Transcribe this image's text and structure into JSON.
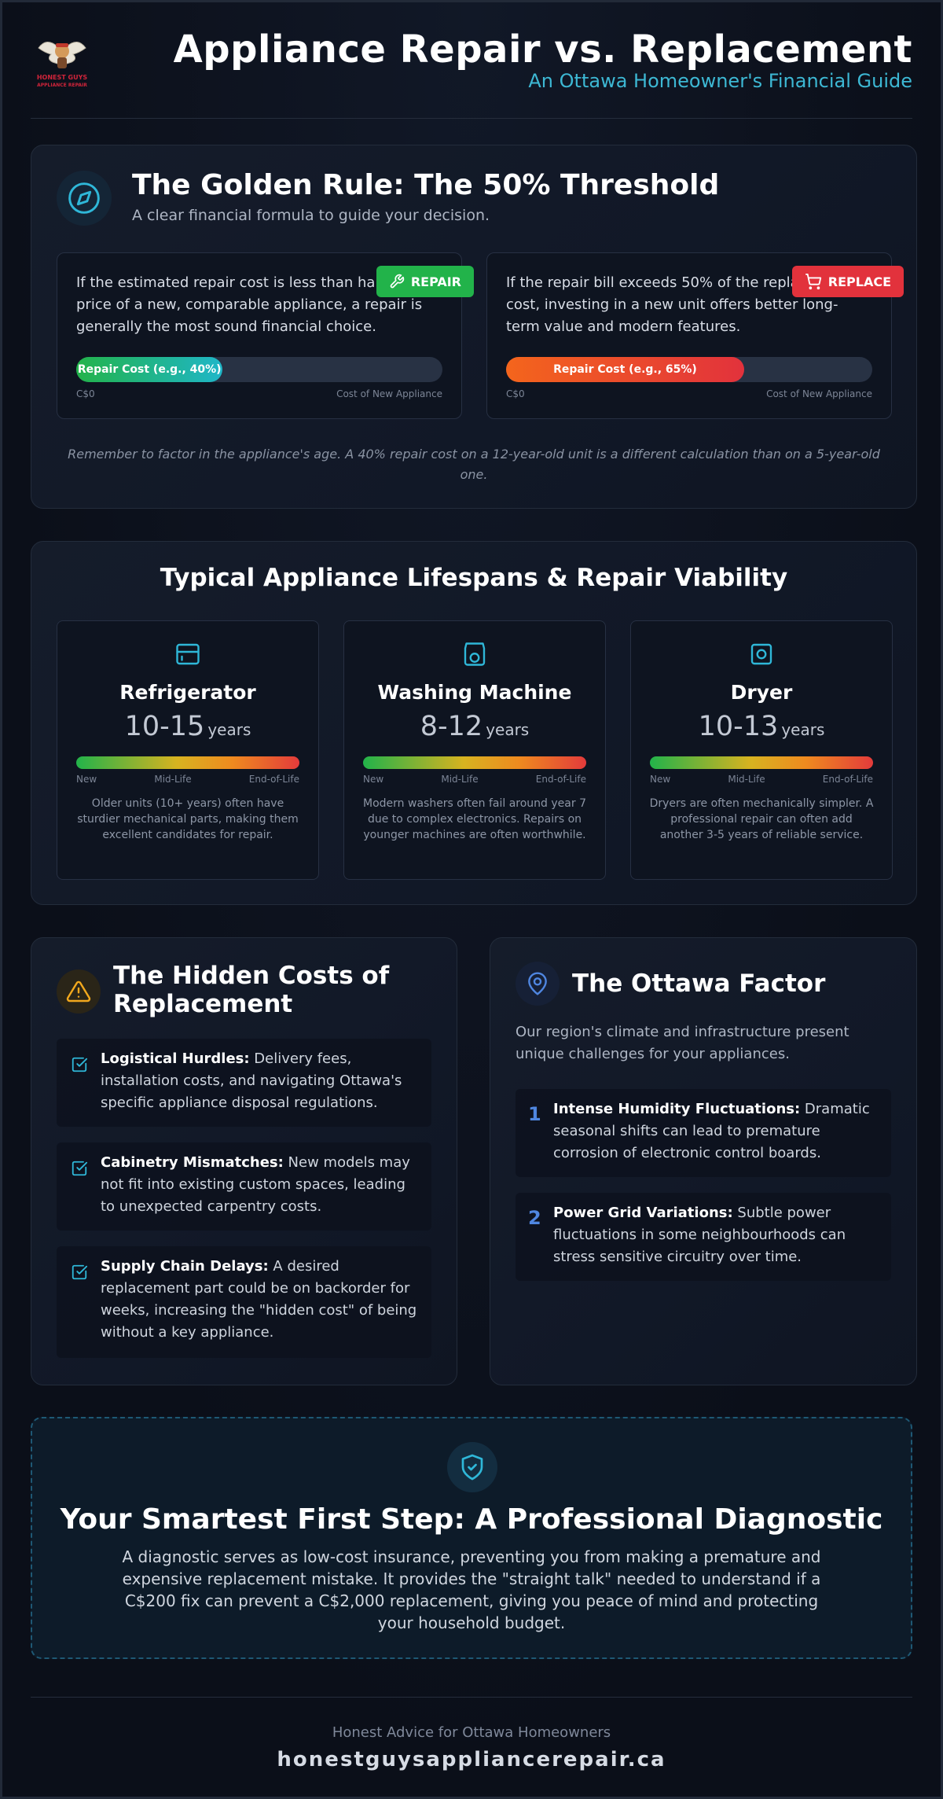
{
  "header": {
    "logo_text": "HONEST GUYS APPLIANCE REPAIR",
    "title": "Appliance Repair vs. Replacement",
    "subtitle": "An Ottawa Homeowner's Financial Guide"
  },
  "golden_rule": {
    "icon": "compass-icon",
    "title": "The Golden Rule: The 50% Threshold",
    "subtitle": "A clear financial formula to guide your decision.",
    "repair": {
      "badge": "REPAIR",
      "badge_icon": "wrench-icon",
      "text": "If the estimated repair cost is less than half the price of a new, comparable appliance, a repair is generally the most sound financial choice.",
      "bar_label": "Repair Cost (e.g., 40%)",
      "bar_value": 0.4,
      "scale_left": "C$0",
      "scale_right": "Cost of New Appliance",
      "color": "#22b34a"
    },
    "replace": {
      "badge": "REPLACE",
      "badge_icon": "cart-icon",
      "text": "If the repair bill exceeds 50% of the replacement cost, investing in a new unit offers better long-term value and modern features.",
      "bar_label": "Repair Cost (e.g., 65%)",
      "bar_value": 0.65,
      "scale_left": "C$0",
      "scale_right": "Cost of New Appliance",
      "color": "#e2323c"
    },
    "note": "Remember to factor in the appliance's age. A 40% repair cost on a 12-year-old unit is a different calculation than on a 5-year-old one."
  },
  "lifespans": {
    "title": "Typical Appliance Lifespans & Repair Viability",
    "scale": [
      "New",
      "Mid-Life",
      "End-of-Life"
    ],
    "items": [
      {
        "icon": "refrigerator-icon",
        "name": "Refrigerator",
        "years": "10-15",
        "unit": "years",
        "desc": "Older units (10+ years) often have sturdier mechanical parts, making them excellent candidates for repair."
      },
      {
        "icon": "washing-machine-icon",
        "name": "Washing Machine",
        "years": "8-12",
        "unit": "years",
        "desc": "Modern washers often fail around year 7 due to complex electronics. Repairs on younger machines are often worthwhile."
      },
      {
        "icon": "dryer-icon",
        "name": "Dryer",
        "years": "10-13",
        "unit": "years",
        "desc": "Dryers are often mechanically simpler. A professional repair can often add another 3-5 years of reliable service."
      }
    ]
  },
  "hidden_costs": {
    "icon": "warning-icon",
    "title": "The Hidden Costs of Replacement",
    "items": [
      {
        "bold": "Logistical Hurdles:",
        "text": " Delivery fees, installation costs, and navigating Ottawa's specific appliance disposal regulations."
      },
      {
        "bold": "Cabinetry Mismatches:",
        "text": " New models may not fit into existing custom spaces, leading to unexpected carpentry costs."
      },
      {
        "bold": "Supply Chain Delays:",
        "text": " A desired replacement part could be on backorder for weeks, increasing the \"hidden cost\" of being without a key appliance."
      }
    ]
  },
  "ottawa": {
    "icon": "map-pin-icon",
    "title": "The Ottawa Factor",
    "intro": "Our region's climate and infrastructure present unique challenges for your appliances.",
    "items": [
      {
        "num": "1",
        "bold": "Intense Humidity Fluctuations:",
        "text": " Dramatic seasonal shifts can lead to premature corrosion of electronic control boards."
      },
      {
        "num": "2",
        "bold": "Power Grid Variations:",
        "text": " Subtle power fluctuations in some neighbourhoods can stress sensitive circuitry over time."
      }
    ]
  },
  "diagnostic": {
    "icon": "shield-check-icon",
    "title": "Your Smartest First Step: A Professional Diagnostic",
    "text": "A diagnostic serves as low-cost insurance, preventing you from making a premature and expensive replacement mistake. It provides the \"straight talk\" needed to understand if a C$200 fix can prevent a C$2,000 replacement, giving you peace of mind and protecting your household budget."
  },
  "footer": {
    "tagline": "Honest Advice for Ottawa Homeowners",
    "url": "honestguysappliancerepair.ca"
  }
}
